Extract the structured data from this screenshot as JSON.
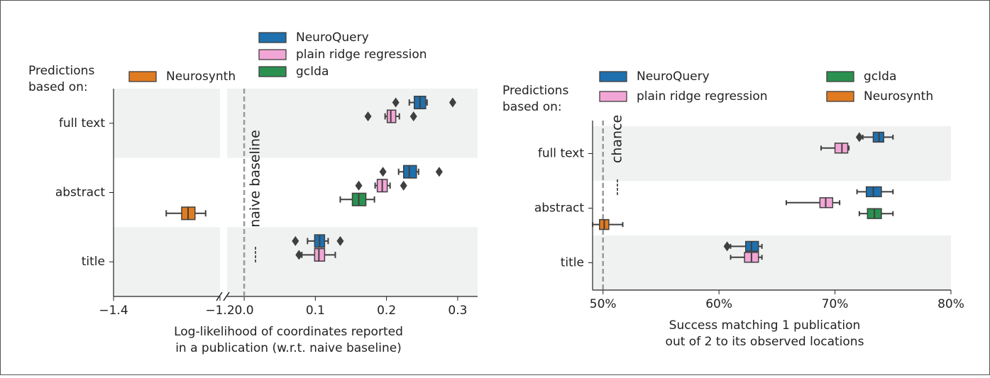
{
  "chart_data": [
    {
      "type": "box",
      "orientation": "horizontal",
      "legend_title": [
        "Predictions",
        "based on:"
      ],
      "xlabel": [
        "Log-likelihood of coordinates reported",
        "in a publication (w.r.t. naive baseline)"
      ],
      "categories": [
        "full text",
        "abstract",
        "title"
      ],
      "xlim": [
        -1.4,
        0.328
      ],
      "x_break": [
        -1.2,
        -0.024
      ],
      "xticks": [
        {
          "value": -1.4,
          "label": "−1.4"
        },
        {
          "value": -1.2,
          "label": "−1.2"
        },
        {
          "value": 0,
          "label": "0.0"
        },
        0.1,
        0.2,
        0.3
      ],
      "band_shading": true,
      "reference_line": {
        "value": 0,
        "label": "naive baseline",
        "color": "#999999"
      },
      "series": [
        {
          "name": "NeuroQuery",
          "color": "#1f70ae",
          "boxes": [
            {
              "whislo": 0.232,
              "q1": 0.239,
              "med": 0.247,
              "q3": 0.255,
              "whishi": 0.257,
              "fliers": [
                0.213,
                0.293
              ]
            },
            {
              "whislo": 0.217,
              "q1": 0.224,
              "med": 0.232,
              "q3": 0.242,
              "whishi": 0.245,
              "fliers": [
                0.195,
                0.274
              ]
            },
            {
              "whislo": 0.089,
              "q1": 0.099,
              "med": 0.106,
              "q3": 0.113,
              "whishi": 0.118,
              "fliers": [
                0.072,
                0.135
              ]
            }
          ]
        },
        {
          "name": "plain ridge regression",
          "color": "#f2a6d6",
          "boxes": [
            {
              "whislo": 0.198,
              "q1": 0.201,
              "med": 0.206,
              "q3": 0.213,
              "whishi": 0.218,
              "fliers": [
                0.174,
                0.238
              ]
            },
            {
              "whislo": 0.184,
              "q1": 0.187,
              "med": 0.194,
              "q3": 0.201,
              "whishi": 0.205,
              "fliers": [
                0.161,
                0.224
              ]
            },
            {
              "whislo": 0.081,
              "q1": 0.099,
              "med": 0.105,
              "q3": 0.113,
              "whishi": 0.128,
              "fliers": [
                0.077
              ]
            }
          ]
        },
        {
          "name": "gcIda",
          "color": "#2a9150",
          "boxes": [
            null,
            {
              "whislo": 0.135,
              "q1": 0.152,
              "med": 0.161,
              "q3": 0.171,
              "whishi": 0.183,
              "fliers": []
            },
            null
          ]
        },
        {
          "name": "Neurosynth",
          "color": "#e07b20",
          "boxes": [
            null,
            {
              "whislo": -1.301,
              "q1": -1.272,
              "med": -1.26,
              "q3": -1.247,
              "whishi": -1.227,
              "fliers": []
            },
            null
          ]
        }
      ]
    },
    {
      "type": "box",
      "orientation": "horizontal",
      "legend_title": [
        "Predictions",
        "based on:"
      ],
      "xlabel": [
        "Success matching 1 publication",
        "out of 2 to its observed locations"
      ],
      "categories": [
        "full text",
        "abstract",
        "title"
      ],
      "xlim": [
        49.1,
        80
      ],
      "xticks": [
        {
          "value": 50,
          "label": "50%"
        },
        {
          "value": 60,
          "label": "60%"
        },
        {
          "value": 70,
          "label": "70%"
        },
        {
          "value": 80,
          "label": "80%"
        }
      ],
      "band_shading": true,
      "reference_line": {
        "value": 50,
        "label": "chance",
        "color": "#999999"
      },
      "series": [
        {
          "name": "NeuroQuery",
          "color": "#1f70ae",
          "boxes": [
            {
              "whislo": 72.4,
              "q1": 73.3,
              "med": 73.8,
              "q3": 74.2,
              "whishi": 75.0,
              "fliers": [
                72.1
              ]
            },
            {
              "whislo": 71.9,
              "q1": 72.7,
              "med": 73.3,
              "q3": 74.0,
              "whishi": 75.0,
              "fliers": []
            },
            {
              "whislo": 61.0,
              "q1": 62.3,
              "med": 62.8,
              "q3": 63.4,
              "whishi": 63.7,
              "fliers": [
                60.7
              ]
            }
          ]
        },
        {
          "name": "plain ridge regression",
          "color": "#f2a6d6",
          "boxes": [
            {
              "whislo": 68.8,
              "q1": 70.0,
              "med": 70.6,
              "q3": 71.1,
              "whishi": 71.2,
              "fliers": []
            },
            {
              "whislo": 65.8,
              "q1": 68.7,
              "med": 69.2,
              "q3": 69.8,
              "whishi": 70.4,
              "fliers": []
            },
            {
              "whislo": 61.0,
              "q1": 62.2,
              "med": 62.8,
              "q3": 63.4,
              "whishi": 63.7,
              "fliers": []
            }
          ]
        },
        {
          "name": "gcIda",
          "color": "#2a9150",
          "boxes": [
            null,
            {
              "whislo": 72.1,
              "q1": 72.8,
              "med": 73.4,
              "q3": 74.0,
              "whishi": 75.0,
              "fliers": []
            },
            null
          ]
        },
        {
          "name": "Neurosynth",
          "color": "#e07b20",
          "boxes": [
            null,
            {
              "whislo": 49.1,
              "q1": 49.7,
              "med": 50.1,
              "q3": 50.5,
              "whishi": 51.7,
              "fliers": []
            },
            null
          ]
        }
      ]
    }
  ]
}
